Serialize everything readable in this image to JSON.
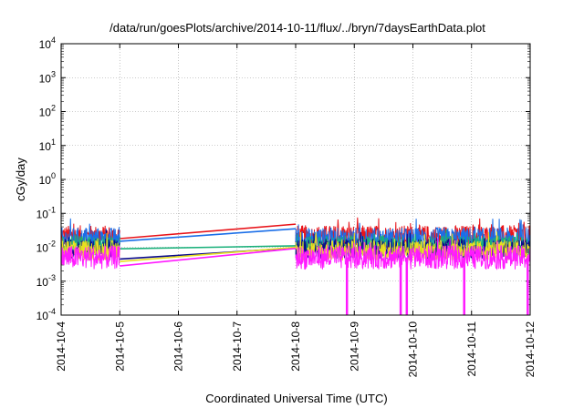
{
  "chart_data": {
    "type": "line",
    "title": "/data/run/goesPlots/archive/2014-10-11/flux/../bryn/7daysEarthData.plot",
    "xlabel": "Coordinated Universal Time (UTC)",
    "ylabel": "cGy/day",
    "y_scale": "log",
    "ylim": [
      0.0001,
      10000
    ],
    "xlim": [
      "2014-10-04",
      "2014-10-12"
    ],
    "x_ticks": [
      "2014-10-4",
      "2014-10-5",
      "2014-10-6",
      "2014-10-7",
      "2014-10-8",
      "2014-10-9",
      "2014-10-10",
      "2014-10-11",
      "2014-10-12"
    ],
    "y_ticks": [
      {
        "value": 0.0001,
        "base": "10",
        "exp": "-4"
      },
      {
        "value": 0.001,
        "base": "10",
        "exp": "-3"
      },
      {
        "value": 0.01,
        "base": "10",
        "exp": "-2"
      },
      {
        "value": 0.1,
        "base": "10",
        "exp": "-1"
      },
      {
        "value": 1,
        "base": "10",
        "exp": "0"
      },
      {
        "value": 10,
        "base": "10",
        "exp": "1"
      },
      {
        "value": 100,
        "base": "10",
        "exp": "2"
      },
      {
        "value": 1000,
        "base": "10",
        "exp": "3"
      },
      {
        "value": 10000,
        "base": "10",
        "exp": "4"
      }
    ],
    "grid": true,
    "data_gap": {
      "from": "2014-10-05",
      "to": "2014-10-08"
    },
    "series": [
      {
        "color": "#e8141a",
        "baseline": 0.02,
        "spread": 0.35,
        "gap_start": 0.018,
        "gap_end": 0.048
      },
      {
        "color": "#1a6ee8",
        "baseline": 0.017,
        "spread": 0.35,
        "gap_start": 0.015,
        "gap_end": 0.035
      },
      {
        "color": "#19b07a",
        "baseline": 0.011,
        "spread": 0.3,
        "gap_start": 0.009,
        "gap_end": 0.011
      },
      {
        "color": "#0a0a8a",
        "baseline": 0.009,
        "spread": 0.3,
        "gap_start": 0.0045,
        "gap_end": 0.0095
      },
      {
        "color": "#e8e020",
        "baseline": 0.008,
        "spread": 0.3,
        "gap_start": 0.0038,
        "gap_end": 0.01
      },
      {
        "color": "#ff1aff",
        "baseline": 0.005,
        "spread": 0.35,
        "gap_start": 0.0028,
        "gap_end": 0.0092
      }
    ],
    "dropouts": [
      "2014-10-08T21:00",
      "2014-10-09T19:00",
      "2014-10-09T21:30",
      "2014-10-10T21:00",
      "2014-10-11T23:00"
    ]
  }
}
